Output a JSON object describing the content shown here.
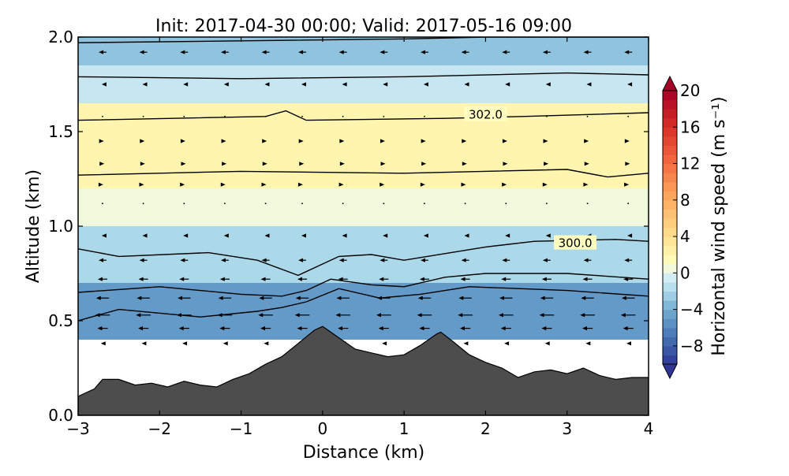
{
  "chart_data": {
    "type": "heatmap",
    "title": "Init: 2017-04-30 00:00; Valid: 2017-05-16 09:00",
    "xlabel": "Distance (km)",
    "ylabel": "Altitude (km)",
    "xlim": [
      -3,
      4
    ],
    "ylim": [
      0.0,
      2.0
    ],
    "xticks": [
      "−3",
      "−2",
      "−1",
      "0",
      "1",
      "2",
      "3",
      "4"
    ],
    "yticks": [
      "0.0",
      "0.5",
      "1.0",
      "1.5",
      "2.0"
    ],
    "colorbar": {
      "label": "Horizontal wind speed (m s⁻¹)",
      "range": [
        -10,
        20
      ],
      "ticks": [
        "20",
        "16",
        "12",
        "8",
        "4",
        "0",
        "−4",
        "−8"
      ],
      "colormap": "RdYlBu_r"
    },
    "wind_speed_bands": [
      {
        "alt": [
          0.4,
          0.7
        ],
        "value": -5
      },
      {
        "alt": [
          0.7,
          1.0
        ],
        "value": -2
      },
      {
        "alt": [
          1.0,
          1.2
        ],
        "value": 0.5
      },
      {
        "alt": [
          1.2,
          1.65
        ],
        "value": 2
      },
      {
        "alt": [
          1.65,
          1.85
        ],
        "value": -1
      },
      {
        "alt": [
          1.85,
          2.0
        ],
        "value": -3
      }
    ],
    "contour_labels": [
      {
        "text": "302.0",
        "x": 2.0,
        "y": 1.59
      },
      {
        "text": "300.0",
        "x": 3.1,
        "y": 0.91
      }
    ],
    "isentropes": [
      [
        [
          -3,
          1.97
        ],
        [
          -1,
          1.98
        ],
        [
          1,
          1.99
        ],
        [
          2,
          2.0
        ],
        [
          4,
          2.0
        ]
      ],
      [
        [
          -3,
          1.79
        ],
        [
          -1,
          1.78
        ],
        [
          1,
          1.79
        ],
        [
          3,
          1.81
        ],
        [
          4,
          1.8
        ]
      ],
      [
        [
          -3,
          1.56
        ],
        [
          -0.7,
          1.58
        ],
        [
          -0.45,
          1.61
        ],
        [
          -0.2,
          1.56
        ],
        [
          1.5,
          1.57
        ],
        [
          2.45,
          1.58
        ],
        [
          4,
          1.6
        ]
      ],
      [
        [
          -3,
          1.27
        ],
        [
          -1,
          1.29
        ],
        [
          1,
          1.28
        ],
        [
          3,
          1.3
        ],
        [
          3.5,
          1.26
        ],
        [
          4,
          1.28
        ]
      ],
      [
        [
          -3,
          0.88
        ],
        [
          -2.5,
          0.84
        ],
        [
          -1.4,
          0.86
        ],
        [
          -0.8,
          0.82
        ],
        [
          -0.3,
          0.74
        ],
        [
          0.2,
          0.84
        ],
        [
          0.6,
          0.85
        ],
        [
          1.0,
          0.82
        ],
        [
          2.0,
          0.89
        ],
        [
          2.6,
          0.92
        ],
        [
          3.6,
          0.93
        ],
        [
          4,
          0.92
        ]
      ],
      [
        [
          -3,
          0.65
        ],
        [
          -2,
          0.68
        ],
        [
          -1,
          0.64
        ],
        [
          -0.5,
          0.63
        ],
        [
          -0.2,
          0.66
        ],
        [
          0.1,
          0.72
        ],
        [
          0.6,
          0.69
        ],
        [
          1.0,
          0.68
        ],
        [
          1.5,
          0.73
        ],
        [
          2.0,
          0.75
        ],
        [
          3.0,
          0.75
        ],
        [
          4,
          0.72
        ]
      ],
      [
        [
          -3,
          0.5
        ],
        [
          -2.5,
          0.56
        ],
        [
          -1.5,
          0.52
        ],
        [
          -0.8,
          0.55
        ],
        [
          -0.5,
          0.57
        ],
        [
          -0.2,
          0.6
        ],
        [
          0.2,
          0.67
        ],
        [
          0.7,
          0.62
        ],
        [
          1.2,
          0.64
        ],
        [
          1.8,
          0.68
        ],
        [
          3.0,
          0.66
        ],
        [
          4,
          0.63
        ]
      ]
    ],
    "terrain": [
      [
        -3,
        0.1
      ],
      [
        -2.8,
        0.14
      ],
      [
        -2.7,
        0.19
      ],
      [
        -2.5,
        0.19
      ],
      [
        -2.3,
        0.16
      ],
      [
        -2.1,
        0.17
      ],
      [
        -1.9,
        0.15
      ],
      [
        -1.7,
        0.18
      ],
      [
        -1.5,
        0.16
      ],
      [
        -1.3,
        0.15
      ],
      [
        -1.1,
        0.19
      ],
      [
        -0.9,
        0.22
      ],
      [
        -0.7,
        0.27
      ],
      [
        -0.5,
        0.31
      ],
      [
        -0.3,
        0.38
      ],
      [
        -0.1,
        0.45
      ],
      [
        0.0,
        0.47
      ],
      [
        0.2,
        0.41
      ],
      [
        0.4,
        0.35
      ],
      [
        0.6,
        0.33
      ],
      [
        0.8,
        0.31
      ],
      [
        1.0,
        0.32
      ],
      [
        1.2,
        0.37
      ],
      [
        1.4,
        0.43
      ],
      [
        1.45,
        0.44
      ],
      [
        1.6,
        0.39
      ],
      [
        1.8,
        0.32
      ],
      [
        2.0,
        0.28
      ],
      [
        2.2,
        0.25
      ],
      [
        2.4,
        0.2
      ],
      [
        2.6,
        0.23
      ],
      [
        2.8,
        0.24
      ],
      [
        3.0,
        0.22
      ],
      [
        3.2,
        0.25
      ],
      [
        3.4,
        0.21
      ],
      [
        3.6,
        0.19
      ],
      [
        3.8,
        0.2
      ],
      [
        4,
        0.2
      ]
    ],
    "wind_vectors": {
      "x": [
        -2.7,
        -2.2,
        -1.7,
        -1.2,
        -0.7,
        -0.25,
        0.25,
        0.75,
        1.25,
        1.75,
        2.25,
        2.75,
        3.25,
        3.75
      ],
      "levels": [
        {
          "alt": 1.92,
          "u": -0.45
        },
        {
          "alt": 1.75,
          "u": -0.1
        },
        {
          "alt": 1.58,
          "u": 0.0
        },
        {
          "alt": 1.45,
          "u": 0.15
        },
        {
          "alt": 1.33,
          "u": 0.2
        },
        {
          "alt": 1.22,
          "u": 0.08
        },
        {
          "alt": 1.12,
          "u": 0.0
        },
        {
          "alt": 0.95,
          "u": -0.1
        },
        {
          "alt": 0.82,
          "u": -0.45
        },
        {
          "alt": 0.72,
          "u": -0.55
        },
        {
          "alt": 0.62,
          "u": -0.75
        },
        {
          "alt": 0.53,
          "u": -0.85
        },
        {
          "alt": 0.46,
          "u": -0.6
        },
        {
          "alt": 0.38,
          "u": -0.2
        }
      ]
    }
  }
}
